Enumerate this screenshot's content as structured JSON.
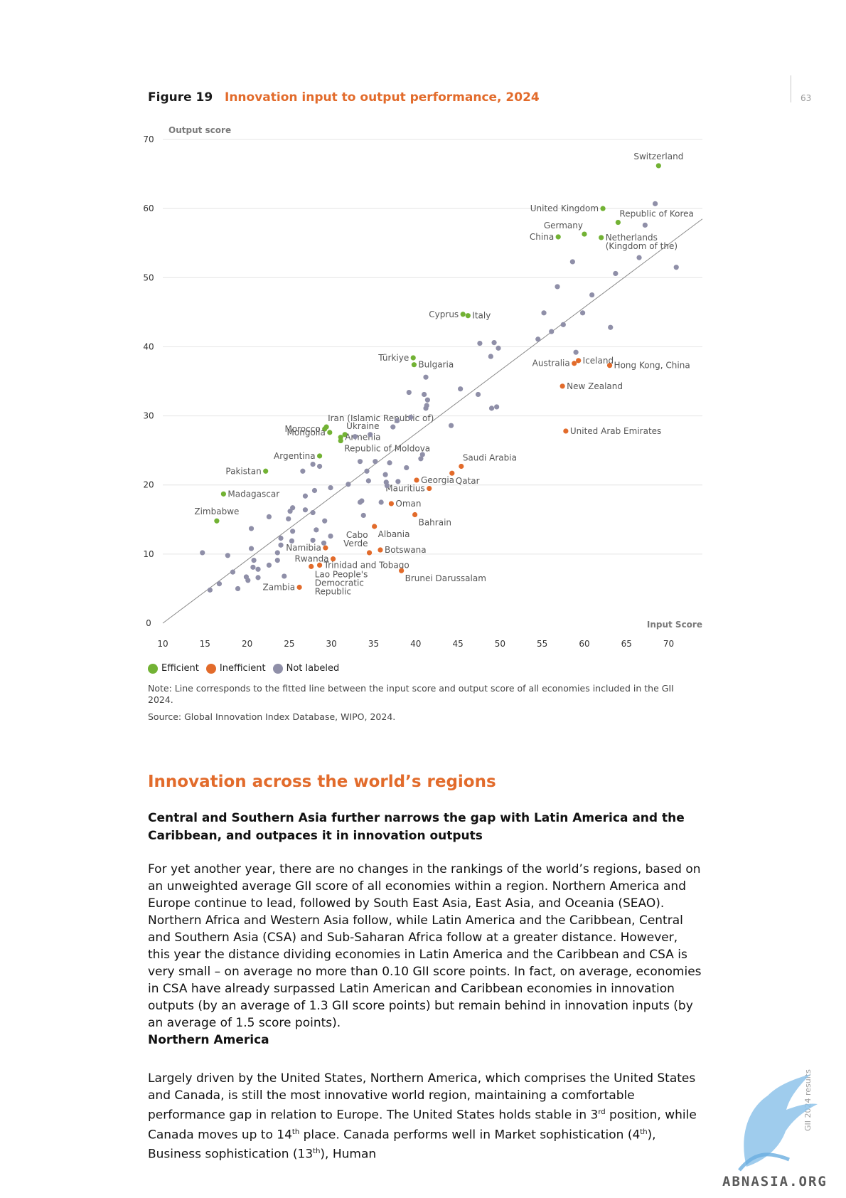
{
  "page": {
    "page_number": "63",
    "side_label": "GII 2024 results",
    "watermark_text": "ABNASIA.ORG"
  },
  "figure": {
    "label": "Figure 19",
    "title": "Innovation input to output performance, 2024",
    "note": "Note: Line corresponds to the fitted line between the input score and output score of all economies included in the GII 2024.",
    "source": "Source: Global Innovation Index Database, WIPO, 2024.",
    "legend": [
      {
        "label": "Efficient",
        "color": "#72b234"
      },
      {
        "label": "Inefficient",
        "color": "#e26b2b"
      },
      {
        "label": "Not labeled",
        "color": "#8f8fa8"
      }
    ]
  },
  "chart_data": {
    "type": "scatter",
    "ylabel": "Output score",
    "xlabel": "Input Score",
    "xlim": [
      10,
      74
    ],
    "ylim": [
      0,
      70
    ],
    "xticks": [
      10,
      15,
      20,
      25,
      30,
      35,
      40,
      45,
      50,
      55,
      60,
      65,
      70
    ],
    "yticks": [
      0,
      10,
      20,
      30,
      40,
      50,
      60,
      70
    ],
    "grid": true,
    "fitted_line": {
      "x": [
        10,
        74
      ],
      "y": [
        0,
        58.5
      ]
    },
    "series": [
      {
        "name": "Efficient",
        "color": "#72b234",
        "points": [
          {
            "x": 68.8,
            "y": 66.2,
            "label": "Switzerland",
            "anchor": "above"
          },
          {
            "x": 62.2,
            "y": 60.0,
            "label": "United Kingdom",
            "anchor": "left"
          },
          {
            "x": 64.0,
            "y": 58.0,
            "label": "Republic of Korea",
            "anchor": "above-right"
          },
          {
            "x": 60.0,
            "y": 56.3,
            "label": "Germany",
            "anchor": "above-left"
          },
          {
            "x": 62.0,
            "y": 55.8,
            "label": "Netherlands (Kingdom of the)",
            "anchor": "right"
          },
          {
            "x": 56.9,
            "y": 55.9,
            "label": "China",
            "anchor": "left"
          },
          {
            "x": 45.6,
            "y": 44.7,
            "label": "Cyprus",
            "anchor": "left"
          },
          {
            "x": 46.2,
            "y": 44.5,
            "label": "Italy",
            "anchor": "right"
          },
          {
            "x": 39.7,
            "y": 38.4,
            "label": "Türkiye",
            "anchor": "left"
          },
          {
            "x": 39.8,
            "y": 37.4,
            "label": "Bulgaria",
            "anchor": "right"
          },
          {
            "x": 29.4,
            "y": 28.4,
            "label": "Iran (Islamic Republic of)",
            "anchor": "above-right"
          },
          {
            "x": 29.2,
            "y": 28.1,
            "label": "Morocco",
            "anchor": "left"
          },
          {
            "x": 29.8,
            "y": 27.6,
            "label": "Mongolia",
            "anchor": "left"
          },
          {
            "x": 31.6,
            "y": 27.3,
            "label": "Ukraine",
            "anchor": "above-right"
          },
          {
            "x": 31.1,
            "y": 26.9,
            "label": "Armenia",
            "anchor": "right"
          },
          {
            "x": 31.1,
            "y": 26.4,
            "label": "Republic of Moldova",
            "anchor": "below-right"
          },
          {
            "x": 28.6,
            "y": 24.2,
            "label": "Argentina",
            "anchor": "left"
          },
          {
            "x": 22.2,
            "y": 22.0,
            "label": "Pakistan",
            "anchor": "left"
          },
          {
            "x": 17.2,
            "y": 18.7,
            "label": "Madagascar",
            "anchor": "right"
          },
          {
            "x": 16.4,
            "y": 14.8,
            "label": "Zimbabwe",
            "anchor": "above"
          }
        ]
      },
      {
        "name": "Inefficient",
        "color": "#e26b2b",
        "points": [
          {
            "x": 59.3,
            "y": 38.0,
            "label": "Iceland",
            "anchor": "right"
          },
          {
            "x": 58.8,
            "y": 37.6,
            "label": "Australia",
            "anchor": "left"
          },
          {
            "x": 63.0,
            "y": 37.3,
            "label": "Hong Kong, China",
            "anchor": "right"
          },
          {
            "x": 57.4,
            "y": 34.3,
            "label": "New Zealand",
            "anchor": "right"
          },
          {
            "x": 57.8,
            "y": 27.8,
            "label": "United Arab Emirates",
            "anchor": "right"
          },
          {
            "x": 45.4,
            "y": 22.7,
            "label": "Saudi Arabia",
            "anchor": "above-right"
          },
          {
            "x": 44.3,
            "y": 21.7,
            "label": "Qatar",
            "anchor": "below-right"
          },
          {
            "x": 40.1,
            "y": 20.7,
            "label": "Georgia",
            "anchor": "right"
          },
          {
            "x": 41.6,
            "y": 19.5,
            "label": "Mauritius",
            "anchor": "left"
          },
          {
            "x": 37.1,
            "y": 17.3,
            "label": "Oman",
            "anchor": "right"
          },
          {
            "x": 39.9,
            "y": 15.7,
            "label": "Bahrain",
            "anchor": "below-right"
          },
          {
            "x": 35.1,
            "y": 14.0,
            "label": "Albania",
            "anchor": "below-right"
          },
          {
            "x": 29.3,
            "y": 10.9,
            "label": "Namibia",
            "anchor": "left"
          },
          {
            "x": 34.5,
            "y": 10.2,
            "label": "Cabo Verde",
            "anchor": "above-left"
          },
          {
            "x": 35.8,
            "y": 10.6,
            "label": "Botswana",
            "anchor": "right"
          },
          {
            "x": 30.2,
            "y": 9.3,
            "label": "Rwanda",
            "anchor": "left"
          },
          {
            "x": 28.6,
            "y": 8.4,
            "label": "Trinidad and Tobago",
            "anchor": "right"
          },
          {
            "x": 27.6,
            "y": 8.2,
            "label": "Lao People's Democratic Republic",
            "anchor": "below-right"
          },
          {
            "x": 38.3,
            "y": 7.6,
            "label": "Brunei Darussalam",
            "anchor": "below-right"
          },
          {
            "x": 26.2,
            "y": 5.2,
            "label": "Zambia",
            "anchor": "left"
          }
        ]
      },
      {
        "name": "Not labeled",
        "color": "#8f8fa8",
        "points": [
          {
            "x": 68.4,
            "y": 60.7
          },
          {
            "x": 67.2,
            "y": 57.6
          },
          {
            "x": 70.9,
            "y": 51.5
          },
          {
            "x": 66.5,
            "y": 52.9
          },
          {
            "x": 63.7,
            "y": 50.6
          },
          {
            "x": 58.6,
            "y": 52.3
          },
          {
            "x": 56.8,
            "y": 48.7
          },
          {
            "x": 60.9,
            "y": 47.5
          },
          {
            "x": 55.2,
            "y": 44.9
          },
          {
            "x": 59.8,
            "y": 44.9
          },
          {
            "x": 57.5,
            "y": 43.2
          },
          {
            "x": 56.1,
            "y": 42.2
          },
          {
            "x": 63.1,
            "y": 42.8
          },
          {
            "x": 54.5,
            "y": 41.1
          },
          {
            "x": 47.6,
            "y": 40.5
          },
          {
            "x": 49.3,
            "y": 40.6
          },
          {
            "x": 49.8,
            "y": 39.8
          },
          {
            "x": 48.9,
            "y": 38.6
          },
          {
            "x": 59.0,
            "y": 39.2
          },
          {
            "x": 41.2,
            "y": 35.6
          },
          {
            "x": 45.3,
            "y": 33.9
          },
          {
            "x": 39.2,
            "y": 33.4
          },
          {
            "x": 41.0,
            "y": 33.1
          },
          {
            "x": 47.4,
            "y": 33.1
          },
          {
            "x": 41.4,
            "y": 32.3
          },
          {
            "x": 41.3,
            "y": 31.5
          },
          {
            "x": 41.2,
            "y": 31.1
          },
          {
            "x": 49.0,
            "y": 31.1
          },
          {
            "x": 49.6,
            "y": 31.3
          },
          {
            "x": 39.4,
            "y": 29.8
          },
          {
            "x": 37.8,
            "y": 29.3
          },
          {
            "x": 37.3,
            "y": 28.4
          },
          {
            "x": 44.2,
            "y": 28.6
          },
          {
            "x": 34.6,
            "y": 27.3
          },
          {
            "x": 32.8,
            "y": 27.0
          },
          {
            "x": 40.8,
            "y": 24.4
          },
          {
            "x": 40.6,
            "y": 23.8
          },
          {
            "x": 33.4,
            "y": 23.4
          },
          {
            "x": 35.2,
            "y": 23.4
          },
          {
            "x": 36.9,
            "y": 23.2
          },
          {
            "x": 38.9,
            "y": 22.5
          },
          {
            "x": 27.8,
            "y": 23.0
          },
          {
            "x": 28.6,
            "y": 22.7
          },
          {
            "x": 26.6,
            "y": 22.0
          },
          {
            "x": 34.2,
            "y": 22.0
          },
          {
            "x": 36.4,
            "y": 21.5
          },
          {
            "x": 34.4,
            "y": 20.6
          },
          {
            "x": 36.5,
            "y": 20.4
          },
          {
            "x": 37.9,
            "y": 20.5
          },
          {
            "x": 32.0,
            "y": 20.1
          },
          {
            "x": 36.6,
            "y": 19.9
          },
          {
            "x": 29.9,
            "y": 19.6
          },
          {
            "x": 28.0,
            "y": 19.2
          },
          {
            "x": 26.9,
            "y": 18.4
          },
          {
            "x": 33.6,
            "y": 17.7
          },
          {
            "x": 33.4,
            "y": 17.5
          },
          {
            "x": 35.9,
            "y": 17.5
          },
          {
            "x": 25.4,
            "y": 16.7
          },
          {
            "x": 25.1,
            "y": 16.2
          },
          {
            "x": 26.9,
            "y": 16.4
          },
          {
            "x": 27.8,
            "y": 16.0
          },
          {
            "x": 22.6,
            "y": 15.4
          },
          {
            "x": 24.9,
            "y": 15.1
          },
          {
            "x": 33.8,
            "y": 15.6
          },
          {
            "x": 29.2,
            "y": 14.8
          },
          {
            "x": 20.5,
            "y": 13.7
          },
          {
            "x": 25.4,
            "y": 13.3
          },
          {
            "x": 28.2,
            "y": 13.5
          },
          {
            "x": 24.0,
            "y": 12.3
          },
          {
            "x": 29.9,
            "y": 12.6
          },
          {
            "x": 25.3,
            "y": 11.9
          },
          {
            "x": 27.8,
            "y": 12.0
          },
          {
            "x": 24.0,
            "y": 11.3
          },
          {
            "x": 29.1,
            "y": 11.6
          },
          {
            "x": 20.5,
            "y": 10.8
          },
          {
            "x": 23.6,
            "y": 10.2
          },
          {
            "x": 14.7,
            "y": 10.2
          },
          {
            "x": 17.7,
            "y": 9.8
          },
          {
            "x": 20.8,
            "y": 9.1
          },
          {
            "x": 23.6,
            "y": 9.1
          },
          {
            "x": 22.6,
            "y": 8.4
          },
          {
            "x": 20.7,
            "y": 8.1
          },
          {
            "x": 21.3,
            "y": 7.8
          },
          {
            "x": 18.3,
            "y": 7.4
          },
          {
            "x": 24.4,
            "y": 6.8
          },
          {
            "x": 19.9,
            "y": 6.7
          },
          {
            "x": 21.3,
            "y": 6.6
          },
          {
            "x": 20.1,
            "y": 6.2
          },
          {
            "x": 16.7,
            "y": 5.7
          },
          {
            "x": 15.6,
            "y": 4.8
          },
          {
            "x": 18.9,
            "y": 5.0
          }
        ]
      }
    ]
  },
  "text": {
    "section_heading": "Innovation across the world’s regions",
    "subheading": "Central and Southern Asia further narrows the gap with Latin America and the Caribbean, and outpaces it in innovation outputs",
    "paragraph1": "For yet another year, there are no changes in the rankings of the world’s regions, based on an unweighted average GII score of all economies within a region. Northern America and Europe continue to lead, followed by South East Asia, East Asia, and Oceania (SEAO). Northern Africa and Western Asia follow, while Latin America and the Caribbean, Central and Southern Asia (CSA) and Sub-Saharan Africa follow at a greater distance. However, this year the distance dividing economies in Latin America and the Caribbean and CSA is very small – on average no more than 0.10 GII score points. In fact, on average, economies in CSA have already surpassed Latin American and Caribbean economies in innovation outputs (by an average of 1.3 GII score points) but remain behind in innovation inputs (by an average of 1.5 score points).",
    "region_heading": "Northern America",
    "p2_a": "Largely driven by the United States, Northern America, which comprises the United States and Canada, is still the most innovative world region, maintaining a comfortable performance gap in relation to Europe. The United States holds stable in 3",
    "p2_sup1": "rd",
    "p2_b": " position, while Canada moves up to 14",
    "p2_sup2": "th",
    "p2_c": " place. Canada performs well in Market sophistication (4",
    "p2_sup3": "th",
    "p2_d": "), Business sophistication (13",
    "p2_sup4": "th",
    "p2_e": "), Human"
  }
}
